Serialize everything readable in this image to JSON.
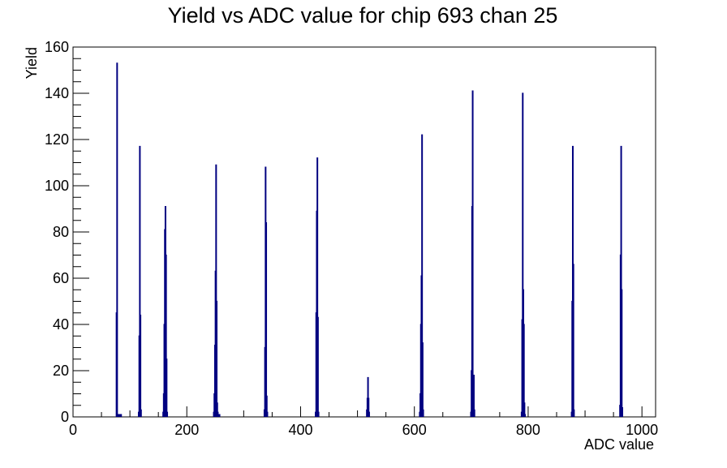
{
  "chart_data": {
    "type": "histogram",
    "title": "Yield vs ADC value for chip 693 chan 25",
    "xlabel": "ADC value",
    "ylabel": "Yield",
    "xlim": [
      0,
      1024
    ],
    "ylim": [
      0,
      160
    ],
    "x_ticks": [
      0,
      200,
      400,
      600,
      800,
      1000
    ],
    "y_ticks": [
      0,
      20,
      40,
      60,
      80,
      100,
      120,
      140,
      160
    ],
    "grid": false,
    "legend": "none",
    "line_color": "#000080",
    "bins": [
      [
        76,
        45
      ],
      [
        77,
        153
      ],
      [
        78,
        1
      ],
      [
        80,
        1
      ],
      [
        82,
        1
      ],
      [
        84,
        1
      ],
      [
        115,
        2
      ],
      [
        116,
        35
      ],
      [
        117,
        117
      ],
      [
        118,
        44
      ],
      [
        119,
        3
      ],
      [
        158,
        2
      ],
      [
        159,
        10
      ],
      [
        160,
        40
      ],
      [
        161,
        81
      ],
      [
        162,
        91
      ],
      [
        163,
        70
      ],
      [
        164,
        25
      ],
      [
        165,
        2
      ],
      [
        247,
        2
      ],
      [
        248,
        10
      ],
      [
        249,
        31
      ],
      [
        250,
        63
      ],
      [
        251,
        109
      ],
      [
        252,
        50
      ],
      [
        253,
        6
      ],
      [
        254,
        2
      ],
      [
        256,
        1
      ],
      [
        257,
        1
      ],
      [
        336,
        3
      ],
      [
        337,
        30
      ],
      [
        338,
        108
      ],
      [
        339,
        84
      ],
      [
        340,
        9
      ],
      [
        341,
        2
      ],
      [
        426,
        2
      ],
      [
        427,
        45
      ],
      [
        428,
        89
      ],
      [
        429,
        112
      ],
      [
        430,
        43
      ],
      [
        431,
        2
      ],
      [
        516,
        3
      ],
      [
        517,
        8
      ],
      [
        518,
        17
      ],
      [
        519,
        8
      ],
      [
        520,
        2
      ],
      [
        609,
        2
      ],
      [
        610,
        10
      ],
      [
        611,
        40
      ],
      [
        612,
        61
      ],
      [
        613,
        122
      ],
      [
        614,
        32
      ],
      [
        615,
        3
      ],
      [
        699,
        2
      ],
      [
        700,
        20
      ],
      [
        701,
        91
      ],
      [
        702,
        141
      ],
      [
        703,
        17
      ],
      [
        704,
        18
      ],
      [
        705,
        3
      ],
      [
        788,
        2
      ],
      [
        789,
        42
      ],
      [
        790,
        140
      ],
      [
        791,
        55
      ],
      [
        792,
        40
      ],
      [
        793,
        6
      ],
      [
        794,
        1
      ],
      [
        876,
        2
      ],
      [
        877,
        50
      ],
      [
        878,
        117
      ],
      [
        879,
        66
      ],
      [
        880,
        3
      ],
      [
        961,
        5
      ],
      [
        962,
        70
      ],
      [
        963,
        117
      ],
      [
        964,
        55
      ],
      [
        965,
        4
      ]
    ]
  }
}
